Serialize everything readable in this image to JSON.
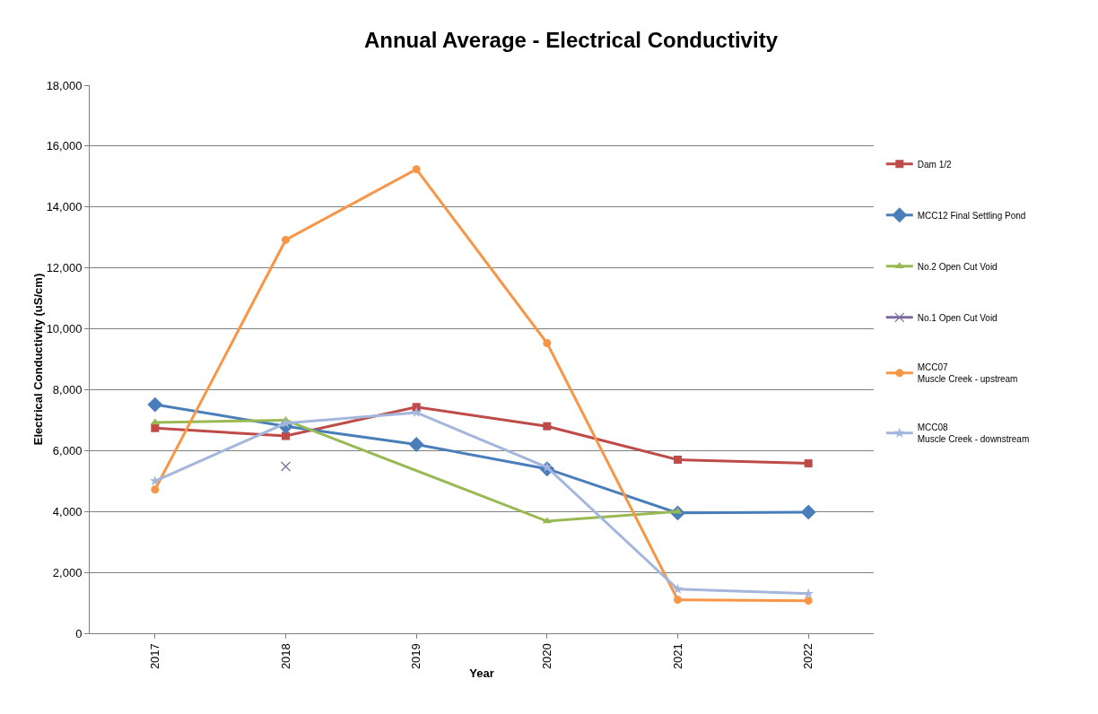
{
  "chart_data": {
    "type": "line",
    "title": "Annual Average - Electrical Conductivity",
    "xlabel": "Year",
    "ylabel": "Electrical Conductivity (uS/cm)",
    "categories": [
      "2017",
      "2018",
      "2019",
      "2020",
      "2021",
      "2022"
    ],
    "ylim": [
      0,
      18000
    ],
    "yticks": [
      {
        "value": 0,
        "label": "0"
      },
      {
        "value": 2000,
        "label": "2,000"
      },
      {
        "value": 4000,
        "label": "4,000"
      },
      {
        "value": 6000,
        "label": "6,000"
      },
      {
        "value": 8000,
        "label": "8,000"
      },
      {
        "value": 10000,
        "label": "10,000"
      },
      {
        "value": 12000,
        "label": "12,000"
      },
      {
        "value": 14000,
        "label": "14,000"
      },
      {
        "value": 16000,
        "label": "16,000"
      },
      {
        "value": 18000,
        "label": "18,000"
      }
    ],
    "grid": "y",
    "legend": "right",
    "series": [
      {
        "name": "Dam 1/2",
        "color": "#be4b48",
        "marker": "square",
        "values": [
          6740,
          6480,
          7430,
          6800,
          5700,
          5580
        ]
      },
      {
        "name": "MCC12 Final Settling Pond",
        "color": "#4a7ebb",
        "marker": "diamond",
        "values": [
          7510,
          6800,
          6200,
          5400,
          3950,
          3980
        ]
      },
      {
        "name": "No.2 Open Cut Void",
        "color": "#98b954",
        "marker": "triangle",
        "values": [
          6920,
          7000,
          null,
          3680,
          4000,
          null
        ]
      },
      {
        "name": "No.1 Open Cut Void",
        "color": "#7d6a9e",
        "marker": "cross",
        "values": [
          null,
          5480,
          null,
          null,
          null,
          null
        ]
      },
      {
        "name": "MCC07\nMuscle Creek - upstream",
        "color": "#f79646",
        "marker": "circle",
        "values": [
          4720,
          12920,
          15240,
          9530,
          1100,
          1070
        ]
      },
      {
        "name": "MCC08\nMuscle Creek - downstream",
        "color": "#a5b6dc",
        "marker": "star",
        "values": [
          5000,
          6900,
          7250,
          5450,
          1450,
          1300
        ]
      }
    ]
  }
}
